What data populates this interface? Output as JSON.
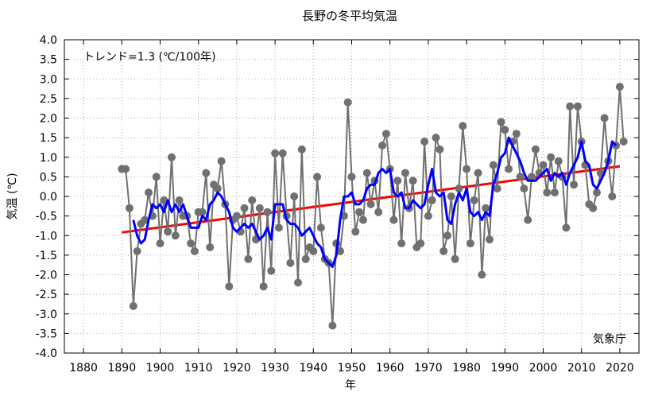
{
  "chart_data": {
    "type": "line",
    "title": "長野の冬平均気温",
    "xlabel": "年",
    "ylabel": "気温 (℃)",
    "trend_label": "トレンド=1.3 (℃/100年)",
    "source_label": "気象庁",
    "xlim": [
      1875,
      2025
    ],
    "ylim": [
      -4.0,
      4.0
    ],
    "x_ticks": [
      1880,
      1890,
      1900,
      1910,
      1920,
      1930,
      1940,
      1950,
      1960,
      1970,
      1980,
      1990,
      2000,
      2010,
      2020
    ],
    "y_ticks": [
      -4.0,
      -3.5,
      -3.0,
      -2.5,
      -2.0,
      -1.5,
      -1.0,
      -0.5,
      0.0,
      0.5,
      1.0,
      1.5,
      2.0,
      2.5,
      3.0,
      3.5,
      4.0
    ],
    "y_tick_labels": [
      "-4.0",
      "-3.5",
      "-3.0",
      "-2.5",
      "-2.0",
      "-1.5",
      "-1.0",
      "-0.5",
      "0.0",
      "0.5",
      "1.0",
      "1.5",
      "2.0",
      "2.5",
      "3.0",
      "3.5",
      "4.0"
    ],
    "grid": true,
    "colors": {
      "annual": "#707070",
      "running_mean": "#0000ff",
      "trend": "#ff0000"
    },
    "series": [
      {
        "role": "annual",
        "x": [
          1890,
          1891,
          1892,
          1893,
          1894,
          1895,
          1896,
          1897,
          1898,
          1899,
          1900,
          1901,
          1902,
          1903,
          1904,
          1905,
          1906,
          1907,
          1908,
          1909,
          1910,
          1911,
          1912,
          1913,
          1914,
          1915,
          1916,
          1917,
          1918,
          1919,
          1920,
          1921,
          1922,
          1923,
          1924,
          1925,
          1926,
          1927,
          1928,
          1929,
          1930,
          1931,
          1932,
          1933,
          1934,
          1935,
          1936,
          1937,
          1938,
          1939,
          1940,
          1941,
          1942,
          1943,
          1944,
          1945,
          1946,
          1947,
          1948,
          1949,
          1950,
          1951,
          1952,
          1953,
          1954,
          1955,
          1956,
          1957,
          1958,
          1959,
          1960,
          1961,
          1962,
          1963,
          1964,
          1965,
          1966,
          1967,
          1968,
          1969,
          1970,
          1971,
          1972,
          1973,
          1974,
          1975,
          1976,
          1977,
          1978,
          1979,
          1980,
          1981,
          1982,
          1983,
          1984,
          1985,
          1986,
          1987,
          1988,
          1989,
          1990,
          1991,
          1992,
          1993,
          1994,
          1995,
          1996,
          1997,
          1998,
          1999,
          2000,
          2001,
          2002,
          2003,
          2004,
          2005,
          2006,
          2007,
          2008,
          2009,
          2010,
          2011,
          2012,
          2013,
          2014,
          2015,
          2016,
          2017,
          2018,
          2019,
          2020,
          2021
        ],
        "values": [
          0.7,
          0.7,
          -0.3,
          -2.8,
          -1.4,
          -0.7,
          -0.6,
          0.1,
          -0.5,
          0.5,
          -1.2,
          -0.1,
          -0.9,
          1.0,
          -1.0,
          -0.1,
          -0.5,
          -0.5,
          -1.2,
          -1.4,
          -0.4,
          -0.4,
          0.6,
          -1.3,
          0.3,
          0.2,
          0.9,
          -0.2,
          -2.3,
          -0.6,
          -0.5,
          -0.9,
          -0.3,
          -1.6,
          -0.1,
          -1.1,
          -0.3,
          -2.3,
          -0.4,
          -1.9,
          1.1,
          -0.8,
          1.1,
          -0.5,
          -1.7,
          0.0,
          -2.2,
          1.2,
          -1.6,
          -1.3,
          -1.4,
          0.5,
          -0.8,
          -1.6,
          -1.7,
          -3.3,
          -1.2,
          -1.4,
          -0.5,
          2.4,
          0.5,
          -0.9,
          -0.4,
          -0.6,
          0.6,
          -0.2,
          0.4,
          -0.4,
          1.3,
          1.6,
          0.7,
          -0.6,
          0.4,
          -1.2,
          0.6,
          -0.3,
          0.4,
          -1.3,
          -1.2,
          1.4,
          -0.5,
          -0.1,
          1.5,
          1.2,
          -1.4,
          -1.0,
          0.0,
          -1.6,
          0.2,
          1.8,
          0.7,
          -1.2,
          -0.1,
          0.6,
          -2.0,
          -0.3,
          -1.1,
          0.8,
          0.2,
          1.9,
          1.7,
          0.7,
          1.4,
          1.6,
          0.5,
          0.2,
          -0.6,
          0.5,
          1.2,
          0.6,
          0.8,
          0.1,
          1.0,
          0.1,
          0.9,
          0.5,
          -0.8,
          2.3,
          0.3,
          2.3,
          1.4,
          0.8,
          -0.2,
          -0.3,
          0.1,
          0.6,
          2.0,
          0.9,
          0.0,
          1.3,
          2.8,
          1.4
        ]
      },
      {
        "role": "running_mean",
        "x": [
          1893,
          1894,
          1895,
          1896,
          1897,
          1898,
          1899,
          1900,
          1901,
          1902,
          1903,
          1904,
          1905,
          1906,
          1907,
          1908,
          1909,
          1910,
          1911,
          1912,
          1913,
          1914,
          1915,
          1916,
          1917,
          1918,
          1919,
          1920,
          1921,
          1922,
          1923,
          1924,
          1925,
          1926,
          1927,
          1928,
          1929,
          1930,
          1931,
          1932,
          1933,
          1934,
          1935,
          1936,
          1937,
          1938,
          1939,
          1940,
          1941,
          1942,
          1943,
          1944,
          1945,
          1946,
          1947,
          1948,
          1949,
          1950,
          1951,
          1952,
          1953,
          1954,
          1955,
          1956,
          1957,
          1958,
          1959,
          1960,
          1961,
          1962,
          1963,
          1964,
          1965,
          1966,
          1967,
          1968,
          1969,
          1970,
          1971,
          1972,
          1973,
          1974,
          1975,
          1976,
          1977,
          1978,
          1979,
          1980,
          1981,
          1982,
          1983,
          1984,
          1985,
          1986,
          1987,
          1988,
          1989,
          1990,
          1991,
          1992,
          1993,
          1994,
          1995,
          1996,
          1997,
          1998,
          1999,
          2000,
          2001,
          2002,
          2003,
          2004,
          2005,
          2006,
          2007,
          2008,
          2009,
          2010,
          2011,
          2012,
          2013,
          2014,
          2015,
          2016,
          2017,
          2018,
          2019
        ],
        "values": [
          -0.6,
          -1.0,
          -1.2,
          -1.1,
          -0.6,
          -0.2,
          -0.3,
          -0.2,
          -0.4,
          -0.1,
          -0.4,
          -0.2,
          -0.4,
          -0.2,
          -0.5,
          -0.8,
          -0.8,
          -0.8,
          -0.5,
          -0.6,
          -0.2,
          -0.1,
          0.1,
          0.0,
          -0.2,
          -0.4,
          -0.8,
          -0.9,
          -0.8,
          -0.7,
          -0.8,
          -0.7,
          -0.9,
          -1.1,
          -1.0,
          -0.8,
          -1.1,
          -0.2,
          -0.2,
          -0.2,
          -0.6,
          -0.7,
          -0.7,
          -0.8,
          -1.0,
          -0.9,
          -0.8,
          -1.0,
          -1.2,
          -1.3,
          -1.6,
          -1.7,
          -1.8,
          -1.5,
          -0.6,
          0.0,
          0.0,
          0.1,
          -0.2,
          -0.2,
          -0.1,
          0.2,
          0.3,
          0.3,
          0.6,
          0.7,
          0.6,
          0.7,
          0.1,
          0.0,
          0.1,
          -0.3,
          -0.3,
          -0.1,
          -0.2,
          -0.3,
          -0.2,
          0.3,
          0.7,
          0.1,
          0.0,
          0.1,
          -0.6,
          -0.7,
          -0.2,
          0.1,
          -0.1,
          0.2,
          -0.4,
          -0.5,
          -0.4,
          -0.6,
          -0.4,
          -0.5,
          0.3,
          0.6,
          1.0,
          1.1,
          1.5,
          1.3,
          1.1,
          0.9,
          0.6,
          0.4,
          0.4,
          0.4,
          0.5,
          0.6,
          0.7,
          0.4,
          0.6,
          0.5,
          0.6,
          0.3,
          0.6,
          0.8,
          1.0,
          1.4,
          0.9,
          0.8,
          0.3,
          0.2,
          0.4,
          0.6,
          0.9,
          1.4,
          1.3
        ]
      },
      {
        "role": "trend",
        "x": [
          1890,
          2020
        ],
        "values": [
          -0.92,
          0.77
        ]
      }
    ]
  }
}
